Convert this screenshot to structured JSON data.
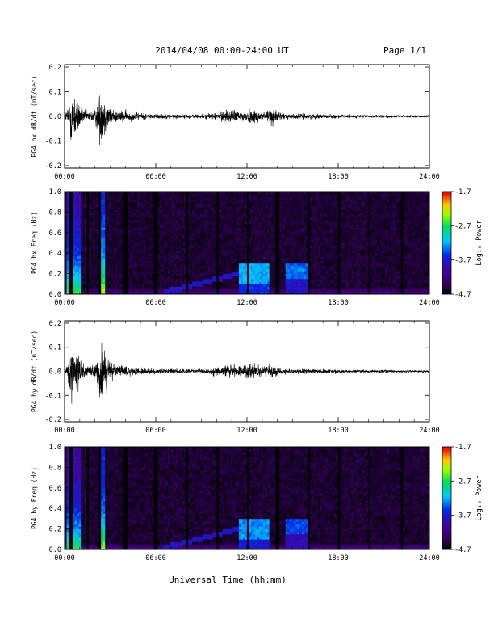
{
  "header": {
    "date_range": "2014/04/08  00:00-24:00 UT",
    "page": "Page 1/1"
  },
  "x_axis_title": "Universal Time (hh:mm)",
  "chart_data": [
    {
      "type": "line",
      "ylabel": "PG4 bx dB/dt (nT/sec)",
      "xlim": [
        0,
        24
      ],
      "ylim": [
        -0.21,
        0.21
      ],
      "xticks": [
        "00:00",
        "06:00",
        "12:00",
        "18:00",
        "24:00"
      ],
      "yticks": [
        "0.2",
        "0.1",
        "0.0",
        "-0.1",
        "-0.2"
      ],
      "series": [
        {
          "color": "#000000",
          "envelope": [
            [
              0,
              0.02
            ],
            [
              0.2,
              0.05
            ],
            [
              0.45,
              0.19
            ],
            [
              0.6,
              0.17
            ],
            [
              0.8,
              0.12
            ],
            [
              1.0,
              0.08
            ],
            [
              1.2,
              0.04
            ],
            [
              1.6,
              0.03
            ],
            [
              2.0,
              0.04
            ],
            [
              2.3,
              0.14
            ],
            [
              2.5,
              0.15
            ],
            [
              2.7,
              0.1
            ],
            [
              3.0,
              0.05
            ],
            [
              3.5,
              0.035
            ],
            [
              4.5,
              0.025
            ],
            [
              6.0,
              0.015
            ],
            [
              8.0,
              0.012
            ],
            [
              9.5,
              0.015
            ],
            [
              10.2,
              0.025
            ],
            [
              10.6,
              0.04
            ],
            [
              11.5,
              0.03
            ],
            [
              12.2,
              0.045
            ],
            [
              13.0,
              0.03
            ],
            [
              13.7,
              0.05
            ],
            [
              14.2,
              0.02
            ],
            [
              15.0,
              0.015
            ],
            [
              16.0,
              0.015
            ],
            [
              17.0,
              0.012
            ],
            [
              20.0,
              0.008
            ],
            [
              24.0,
              0.006
            ]
          ]
        }
      ]
    },
    {
      "type": "heatmap",
      "ylabel": "PG4 bx Freq (Hz)",
      "xlim": [
        0,
        24
      ],
      "ylim": [
        0,
        1.0
      ],
      "xticks": [
        "00:00",
        "06:00",
        "12:00",
        "18:00",
        "24:00"
      ],
      "yticks": [
        "1.0",
        "0.8",
        "0.6",
        "0.4",
        "0.2",
        "0.0"
      ],
      "colorbar": {
        "label": "Log₁₀ Power",
        "ticks": [
          "-1.7",
          "-2.7",
          "-3.7",
          "-4.7"
        ],
        "range": [
          -4.7,
          -1.7
        ]
      },
      "gaps_hours": [
        0.4,
        1.5,
        2.3,
        4.0,
        6.0,
        8.1,
        10.1,
        12.1,
        14.0,
        16.1,
        18.1,
        20.1,
        22.2
      ],
      "features": [
        {
          "kind": "broadband_burst",
          "start": 0.1,
          "end": 1.0,
          "intensity": -2.5
        },
        {
          "kind": "broadband_burst",
          "start": 2.3,
          "end": 2.7,
          "intensity": -2.2
        },
        {
          "kind": "rising_tone",
          "start": 6.5,
          "end": 12.0,
          "f_start": 0.02,
          "f_end": 0.22,
          "intensity": -3.8
        },
        {
          "kind": "patch",
          "start": 11.5,
          "end": 13.5,
          "f_low": 0.1,
          "f_high": 0.3,
          "intensity": -3.2
        },
        {
          "kind": "patch",
          "start": 14.5,
          "end": 16.0,
          "f_low": 0.15,
          "f_high": 0.3,
          "intensity": -3.4
        }
      ]
    },
    {
      "type": "line",
      "ylabel": "PG4 by dB/dt (nT/sec)",
      "xlim": [
        0,
        24
      ],
      "ylim": [
        -0.21,
        0.21
      ],
      "xticks": [
        "00:00",
        "06:00",
        "12:00",
        "18:00",
        "24:00"
      ],
      "yticks": [
        "0.2",
        "0.1",
        "0.0",
        "-0.1",
        "-0.2"
      ],
      "series": [
        {
          "color": "#000000",
          "envelope": [
            [
              0,
              0.02
            ],
            [
              0.2,
              0.04
            ],
            [
              0.5,
              0.18
            ],
            [
              0.7,
              0.12
            ],
            [
              1.0,
              0.08
            ],
            [
              1.3,
              0.04
            ],
            [
              1.6,
              0.03
            ],
            [
              2.0,
              0.05
            ],
            [
              2.3,
              0.14
            ],
            [
              2.5,
              0.2
            ],
            [
              2.7,
              0.12
            ],
            [
              3.0,
              0.06
            ],
            [
              3.5,
              0.04
            ],
            [
              4.5,
              0.02
            ],
            [
              6.0,
              0.015
            ],
            [
              8.0,
              0.012
            ],
            [
              9.5,
              0.018
            ],
            [
              10.2,
              0.03
            ],
            [
              10.6,
              0.04
            ],
            [
              11.5,
              0.03
            ],
            [
              12.2,
              0.05
            ],
            [
              13.0,
              0.03
            ],
            [
              13.7,
              0.045
            ],
            [
              14.2,
              0.02
            ],
            [
              15.0,
              0.015
            ],
            [
              16.0,
              0.015
            ],
            [
              17.0,
              0.012
            ],
            [
              20.0,
              0.008
            ],
            [
              24.0,
              0.006
            ]
          ]
        }
      ]
    },
    {
      "type": "heatmap",
      "ylabel": "PG4 by Freq (Hz)",
      "xlim": [
        0,
        24
      ],
      "ylim": [
        0,
        1.0
      ],
      "xticks": [
        "00:00",
        "06:00",
        "12:00",
        "18:00",
        "24:00"
      ],
      "yticks": [
        "1.0",
        "0.8",
        "0.6",
        "0.4",
        "0.2",
        "0.0"
      ],
      "colorbar": {
        "label": "Log₁₀ Power",
        "ticks": [
          "-1.7",
          "-2.7",
          "-3.7",
          "-4.7"
        ],
        "range": [
          -4.7,
          -1.7
        ]
      },
      "gaps_hours": [
        0.4,
        1.5,
        2.3,
        4.0,
        6.0,
        8.1,
        10.1,
        12.1,
        14.0,
        16.1,
        18.1,
        20.1,
        22.2
      ],
      "features": [
        {
          "kind": "broadband_burst",
          "start": 0.1,
          "end": 1.0,
          "intensity": -2.6
        },
        {
          "kind": "broadband_burst",
          "start": 2.3,
          "end": 2.7,
          "intensity": -2.3
        },
        {
          "kind": "rising_tone",
          "start": 6.5,
          "end": 12.0,
          "f_start": 0.02,
          "f_end": 0.22,
          "intensity": -3.8
        },
        {
          "kind": "patch",
          "start": 11.5,
          "end": 13.5,
          "f_low": 0.1,
          "f_high": 0.3,
          "intensity": -3.3
        },
        {
          "kind": "patch",
          "start": 14.5,
          "end": 16.0,
          "f_low": 0.15,
          "f_high": 0.3,
          "intensity": -3.5
        }
      ]
    }
  ]
}
